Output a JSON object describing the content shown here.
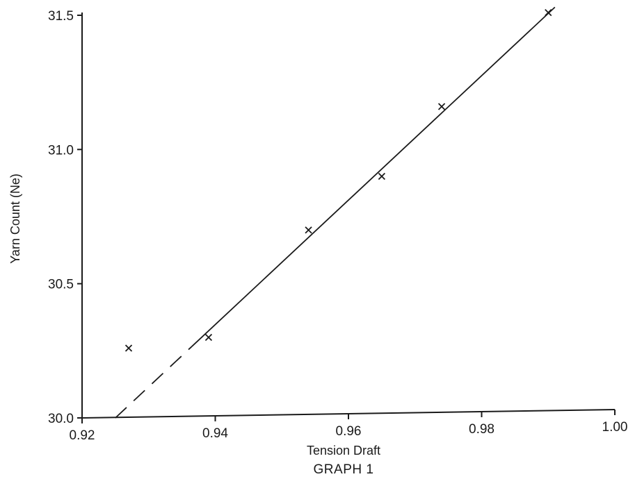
{
  "chart_data": {
    "type": "scatter",
    "title": "",
    "caption": "GRAPH 1",
    "xlabel": "Tension Draft",
    "ylabel": "Yarn Count (Ne)",
    "xlim": [
      0.92,
      1.0
    ],
    "ylim": [
      30.0,
      31.5
    ],
    "x_ticks": [
      0.92,
      0.94,
      0.96,
      0.98,
      1.0
    ],
    "x_tick_labels": [
      "0.92",
      "0.94",
      "0.96",
      "0.98",
      "1.00"
    ],
    "y_ticks": [
      30.0,
      30.5,
      31.0,
      31.5
    ],
    "y_tick_labels": [
      "30.0",
      "30.5",
      "31.0",
      "31.5"
    ],
    "grid": false,
    "series": [
      {
        "marker": "x",
        "x": [
          0.927,
          0.939,
          0.954,
          0.965,
          0.974,
          0.99
        ],
        "y": [
          30.26,
          30.3,
          30.7,
          30.9,
          31.16,
          31.51
        ]
      }
    ],
    "fit_line": {
      "x": [
        0.925,
        0.991
      ],
      "y": [
        30.0,
        31.53
      ],
      "dashed_until_x": 0.9365
    }
  }
}
